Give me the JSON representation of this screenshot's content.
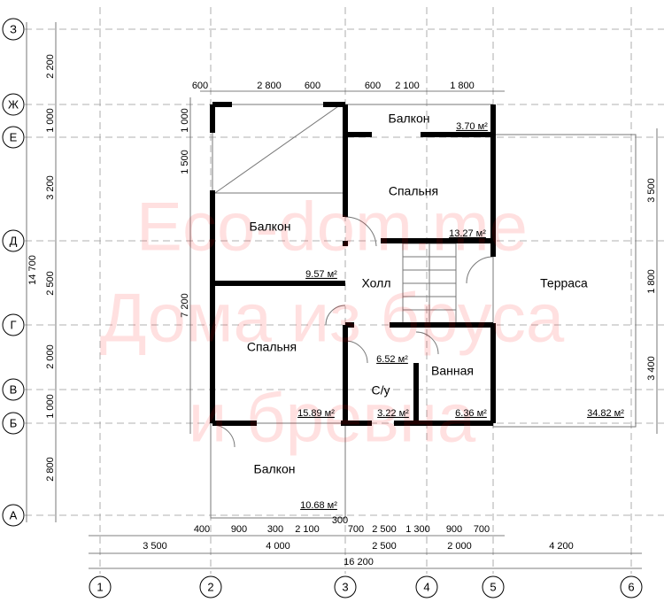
{
  "grid": {
    "columns": [
      "1",
      "2",
      "3",
      "4",
      "5",
      "6"
    ],
    "rows": [
      "З",
      "Ж",
      "Е",
      "Д",
      "Г",
      "В",
      "Б",
      "А"
    ]
  },
  "dimensions": {
    "top": [
      "600",
      "2 800",
      "600",
      "600",
      "2 100",
      "1 800"
    ],
    "left_outer": [
      "2 200",
      "1 000",
      "3 200",
      "2 500",
      "2 000",
      "1 000",
      "2 800"
    ],
    "left_total": "14 700",
    "left_inner": [
      "1 000",
      "1 500",
      "7 200"
    ],
    "right": [
      "3 500",
      "1 800",
      "3 400"
    ],
    "bottom_1": [
      "400",
      "900",
      "300",
      "2 100",
      "300",
      "700",
      "2 500",
      "1 300",
      "900",
      "700"
    ],
    "bottom_2": [
      "3 500",
      "4 000",
      "2 500",
      "2 000",
      "4 200"
    ],
    "total": "16 200"
  },
  "rooms": [
    "Балкон",
    "Спальня",
    "Балкон",
    "Холл",
    "Терраса",
    "Спальня",
    "Ванная",
    "С/у",
    "Балкон"
  ],
  "areas": [
    "3.70 м²",
    "13.27 м²",
    "9.57 м²",
    "6.52 м²",
    "15.89 м²",
    "3.22 м²",
    "6.36 м²",
    "34.82 м²",
    "10.68 м²"
  ],
  "watermark": [
    "Eco-dom.me",
    "Дома из бруса",
    "и бревна"
  ]
}
